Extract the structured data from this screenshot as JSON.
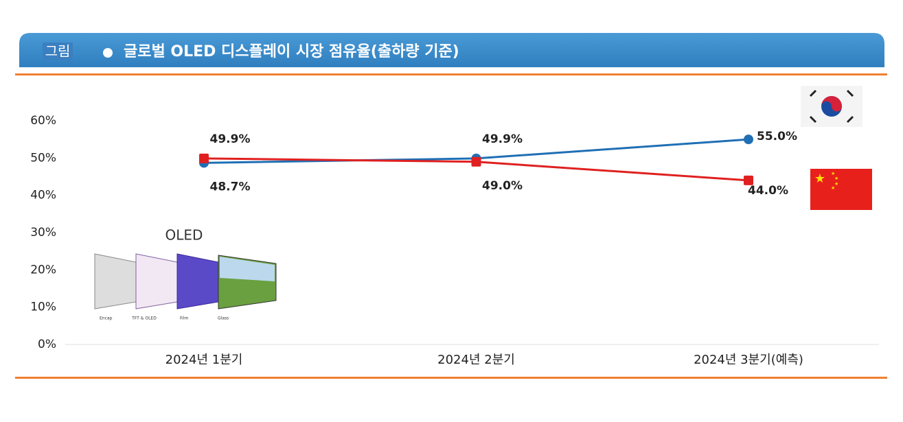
{
  "header": {
    "tag": "그림",
    "title": "글로벌 OLED 디스플레이 시장 점유율(출하량 기준)"
  },
  "chart_data": {
    "type": "line",
    "categories": [
      "2024년 1분기",
      "2024년 2분기",
      "2024년 3분기(예측)"
    ],
    "series": [
      {
        "color": "#1f6fb5",
        "marker": "circle",
        "values": [
          48.7,
          49.9,
          55.0
        ],
        "value_labels": [
          "48.7%",
          "49.9%",
          "55.0%"
        ]
      },
      {
        "color": "#e02020",
        "marker": "square",
        "values": [
          49.9,
          49.0,
          44.0
        ],
        "value_labels": [
          "49.9%",
          "49.0%",
          "44.0%"
        ]
      }
    ],
    "ylim": [
      0,
      60
    ],
    "yticks": [
      {
        "value": 0,
        "label": "0%"
      },
      {
        "value": 10,
        "label": "10%"
      },
      {
        "value": 20,
        "label": "20%"
      },
      {
        "value": 30,
        "label": "30%"
      },
      {
        "value": 40,
        "label": "40%"
      },
      {
        "value": 50,
        "label": "50%"
      },
      {
        "value": 60,
        "label": "60%"
      }
    ],
    "illustration": {
      "title": "OLED",
      "layers": [
        "Encap",
        "TFT & OLED",
        "Film",
        "Glass"
      ]
    }
  }
}
